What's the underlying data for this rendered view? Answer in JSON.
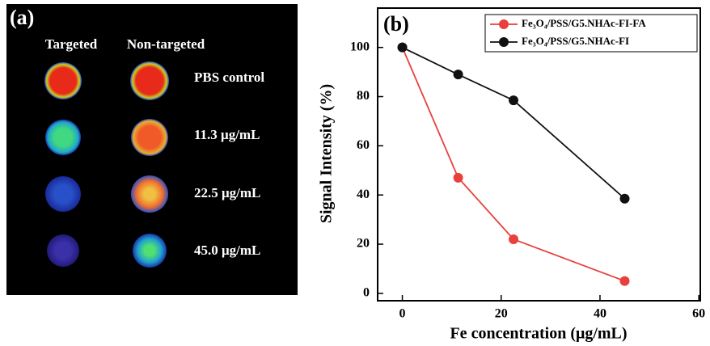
{
  "panel_a": {
    "label": "(a)",
    "columns": [
      "Targeted",
      "Non-targeted"
    ],
    "rows": [
      "PBS control",
      "11.3 μg/mL",
      "22.5 μg/mL",
      "45.0 μg/mL"
    ]
  },
  "chart_data": {
    "type": "line",
    "panel_label": "(b)",
    "x_label": "Fe concentration (μg/mL)",
    "y_label": "Signal Intensity (%)",
    "series": [
      {
        "name": "Fe₃O₄/PSS/G5.NHAc-FI-FA",
        "color": "#e8413c",
        "x": [
          0,
          11.3,
          22.5,
          45
        ],
        "values": [
          100,
          47,
          22,
          5
        ]
      },
      {
        "name": "Fe₃O₄/PSS/G5.NHAc-FI",
        "color": "#111111",
        "x": [
          0,
          11.3,
          22.5,
          45
        ],
        "values": [
          100,
          89,
          78.5,
          38.5
        ]
      }
    ],
    "xlim": [
      -5,
      60.3
    ],
    "ylim": [
      -3,
      116
    ],
    "xticks": [
      0,
      20,
      40,
      60
    ],
    "yticks": [
      0,
      20,
      40,
      60,
      80,
      100
    ],
    "grid": false,
    "legend": "top-right"
  }
}
